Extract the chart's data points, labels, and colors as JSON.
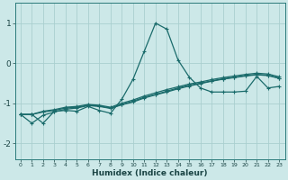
{
  "title": "",
  "xlabel": "Humidex (Indice chaleur)",
  "ylabel": "",
  "bg_color": "#cce8e8",
  "grid_color": "#aacfcf",
  "line_color": "#1a6b6b",
  "xlim": [
    -0.5,
    23.5
  ],
  "ylim": [
    -2.4,
    1.5
  ],
  "xticks": [
    0,
    1,
    2,
    3,
    4,
    5,
    6,
    7,
    8,
    9,
    10,
    11,
    12,
    13,
    14,
    15,
    16,
    17,
    18,
    19,
    20,
    21,
    22,
    23
  ],
  "yticks": [
    -2,
    -1,
    0,
    1
  ],
  "series1_x": [
    0,
    1,
    2,
    3,
    4,
    5,
    6,
    7,
    8,
    9,
    10,
    11,
    12,
    13,
    14,
    15,
    16,
    17,
    18,
    19,
    20,
    21,
    22,
    23
  ],
  "series1_y": [
    -1.28,
    -1.28,
    -1.5,
    -1.2,
    -1.18,
    -1.2,
    -1.08,
    -1.18,
    -1.25,
    -0.9,
    -0.4,
    0.3,
    1.0,
    0.85,
    0.08,
    -0.35,
    -0.62,
    -0.72,
    -0.72,
    -0.72,
    -0.7,
    -0.33,
    -0.62,
    -0.58
  ],
  "series2_x": [
    0,
    1,
    2,
    3,
    4,
    5,
    6,
    7,
    8,
    9,
    10,
    11,
    12,
    13,
    14,
    15,
    16,
    17,
    18,
    19,
    20,
    21,
    22,
    23
  ],
  "series2_y": [
    -1.28,
    -1.28,
    -1.22,
    -1.18,
    -1.12,
    -1.1,
    -1.05,
    -1.07,
    -1.12,
    -1.03,
    -0.95,
    -0.85,
    -0.78,
    -0.7,
    -0.62,
    -0.55,
    -0.5,
    -0.44,
    -0.39,
    -0.35,
    -0.31,
    -0.28,
    -0.3,
    -0.37
  ],
  "series3_x": [
    0,
    1,
    2,
    3,
    4,
    5,
    6,
    7,
    8,
    9,
    10,
    11,
    12,
    13,
    14,
    15,
    16,
    17,
    18,
    19,
    20,
    21,
    22,
    23
  ],
  "series3_y": [
    -1.28,
    -1.28,
    -1.2,
    -1.16,
    -1.1,
    -1.08,
    -1.03,
    -1.05,
    -1.1,
    -1.0,
    -0.92,
    -0.82,
    -0.74,
    -0.66,
    -0.59,
    -0.52,
    -0.47,
    -0.41,
    -0.36,
    -0.32,
    -0.28,
    -0.25,
    -0.27,
    -0.34
  ],
  "series4_x": [
    0,
    1,
    2,
    3,
    4,
    5,
    6,
    7,
    8,
    9,
    10,
    11,
    12,
    13,
    14,
    15,
    16,
    17,
    18,
    19,
    20,
    21,
    22,
    23
  ],
  "series4_y": [
    -1.28,
    -1.5,
    -1.3,
    -1.22,
    -1.15,
    -1.12,
    -1.06,
    -1.08,
    -1.13,
    -1.04,
    -0.97,
    -0.87,
    -0.79,
    -0.72,
    -0.64,
    -0.57,
    -0.51,
    -0.45,
    -0.4,
    -0.36,
    -0.32,
    -0.29,
    -0.31,
    -0.38
  ]
}
